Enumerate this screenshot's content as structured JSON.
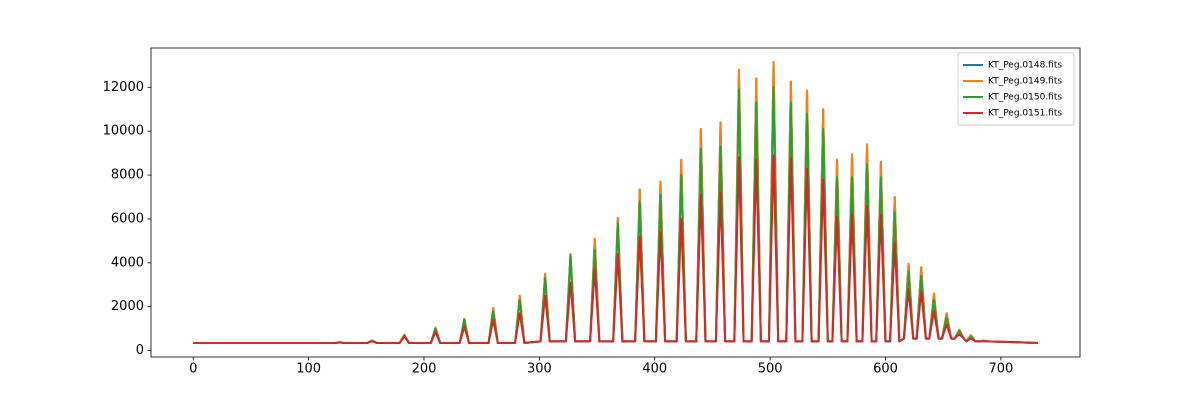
{
  "chart_data": {
    "type": "line",
    "x": [
      0,
      123,
      127,
      131,
      151,
      155,
      159,
      179,
      183,
      187,
      206,
      210,
      214,
      231,
      235,
      239,
      256,
      260,
      264,
      279,
      283,
      287,
      301,
      305,
      309,
      323,
      327,
      331,
      344,
      348,
      352,
      364,
      368,
      372,
      383,
      387,
      391,
      401,
      405,
      409,
      419,
      423,
      427,
      436,
      440,
      444,
      453,
      457,
      461,
      469,
      473,
      477,
      484,
      488,
      492,
      499,
      503,
      507,
      514,
      518,
      522,
      528,
      532,
      536,
      542,
      546,
      550,
      554,
      558,
      562,
      567,
      571,
      575,
      580,
      584,
      588,
      592,
      596,
      600,
      604,
      608,
      612,
      616,
      620,
      624,
      627,
      631,
      635,
      638,
      642,
      646,
      649,
      653,
      657,
      660,
      664,
      668,
      670,
      674,
      678,
      681,
      685,
      689,
      732
    ],
    "series": [
      {
        "name": "KT_Peg.0148.fits",
        "color": "#1f77b4",
        "values": [
          350,
          350,
          380,
          350,
          350,
          460,
          350,
          350,
          720,
          350,
          350,
          1050,
          350,
          350,
          1450,
          350,
          350,
          1950,
          350,
          350,
          2500,
          350,
          420,
          3500,
          420,
          420,
          4400,
          420,
          420,
          5100,
          420,
          420,
          6050,
          420,
          420,
          7350,
          420,
          420,
          7700,
          420,
          420,
          8700,
          420,
          420,
          10100,
          420,
          420,
          10400,
          420,
          420,
          12800,
          420,
          420,
          12400,
          420,
          420,
          13150,
          420,
          420,
          12250,
          420,
          420,
          11850,
          420,
          420,
          11000,
          420,
          420,
          8700,
          420,
          420,
          8950,
          420,
          420,
          9400,
          420,
          420,
          8600,
          420,
          420,
          7000,
          420,
          550,
          3950,
          550,
          550,
          3800,
          550,
          550,
          2600,
          550,
          550,
          1700,
          550,
          550,
          950,
          550,
          420,
          700,
          420,
          420,
          450,
          420,
          350
        ]
      },
      {
        "name": "KT_Peg.0149.fits",
        "color": "#ff7f0e",
        "values": [
          350,
          350,
          380,
          350,
          350,
          460,
          350,
          350,
          720,
          350,
          350,
          1050,
          350,
          350,
          1450,
          350,
          350,
          1950,
          350,
          350,
          2500,
          350,
          420,
          3500,
          420,
          420,
          4400,
          420,
          420,
          5100,
          420,
          420,
          6050,
          420,
          420,
          7350,
          420,
          420,
          7700,
          420,
          420,
          8700,
          420,
          420,
          10100,
          420,
          420,
          10400,
          420,
          420,
          12800,
          420,
          420,
          12400,
          420,
          420,
          13150,
          420,
          420,
          12250,
          420,
          420,
          11850,
          420,
          420,
          11000,
          420,
          420,
          8700,
          420,
          420,
          8950,
          420,
          420,
          9400,
          420,
          420,
          8600,
          420,
          420,
          7000,
          420,
          550,
          3950,
          550,
          550,
          3800,
          550,
          550,
          2600,
          550,
          550,
          1700,
          550,
          550,
          950,
          550,
          420,
          700,
          420,
          420,
          450,
          420,
          350
        ]
      },
      {
        "name": "KT_Peg.0150.fits",
        "color": "#2ca02c",
        "values": [
          350,
          350,
          380,
          350,
          350,
          450,
          350,
          350,
          700,
          350,
          350,
          1000,
          350,
          350,
          1400,
          350,
          350,
          1800,
          350,
          350,
          2300,
          350,
          420,
          3300,
          420,
          420,
          4350,
          420,
          420,
          4600,
          420,
          420,
          5800,
          420,
          420,
          6800,
          420,
          420,
          7100,
          420,
          420,
          8000,
          420,
          420,
          9200,
          420,
          420,
          9300,
          420,
          420,
          11900,
          420,
          420,
          11300,
          420,
          420,
          12000,
          420,
          420,
          11300,
          420,
          420,
          10800,
          420,
          420,
          10100,
          420,
          420,
          7900,
          420,
          420,
          7900,
          420,
          420,
          8500,
          420,
          420,
          7900,
          420,
          420,
          6300,
          420,
          550,
          3600,
          550,
          550,
          3400,
          550,
          550,
          2300,
          550,
          550,
          1500,
          550,
          550,
          900,
          550,
          420,
          650,
          420,
          420,
          450,
          420,
          350
        ]
      },
      {
        "name": "KT_Peg.0151.fits",
        "color": "#d62728",
        "values": [
          350,
          350,
          370,
          350,
          350,
          430,
          350,
          350,
          650,
          350,
          350,
          850,
          350,
          350,
          1100,
          350,
          350,
          1400,
          350,
          350,
          1700,
          350,
          420,
          2500,
          420,
          420,
          3100,
          420,
          420,
          3700,
          420,
          420,
          4400,
          420,
          420,
          5200,
          420,
          420,
          5400,
          420,
          420,
          6000,
          420,
          420,
          7100,
          420,
          420,
          7200,
          420,
          420,
          8800,
          420,
          420,
          8700,
          420,
          420,
          8900,
          420,
          420,
          8800,
          420,
          420,
          8300,
          420,
          420,
          7800,
          420,
          420,
          6100,
          420,
          420,
          6200,
          420,
          420,
          6600,
          420,
          420,
          6200,
          420,
          420,
          4900,
          420,
          550,
          2800,
          550,
          550,
          2700,
          550,
          550,
          1800,
          550,
          550,
          1200,
          550,
          550,
          750,
          550,
          420,
          550,
          420,
          420,
          420,
          420,
          350
        ]
      }
    ],
    "xlim": [
      -36.6,
      768.6
    ],
    "xticks": [
      0,
      100,
      200,
      300,
      400,
      500,
      600,
      700
    ],
    "ylim": [
      -290,
      13790
    ],
    "yticks": [
      0,
      2000,
      4000,
      6000,
      8000,
      10000,
      12000
    ],
    "legend": "upper right"
  }
}
